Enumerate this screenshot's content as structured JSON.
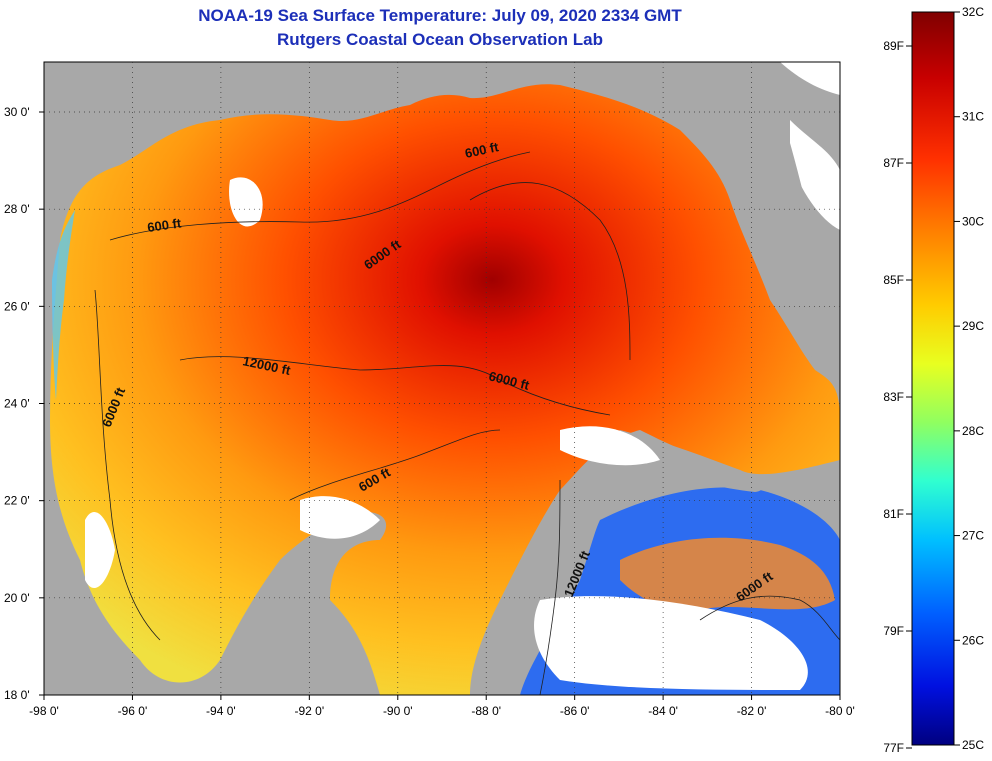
{
  "title": {
    "line1": "NOAA-19 Sea Surface Temperature:  July 09, 2020 2334 GMT",
    "line2": "Rutgers Coastal Ocean Observation Lab"
  },
  "map": {
    "lon_ticks": [
      "-98 0'",
      "-96 0'",
      "-94 0'",
      "-92 0'",
      "-90 0'",
      "-88 0'",
      "-86 0'",
      "-84 0'",
      "-82 0'",
      "-80 0'"
    ],
    "lat_ticks": [
      "30 0'",
      "28 0'",
      "26 0'",
      "24 0'",
      "22 0'",
      "20 0'",
      "18 0'"
    ],
    "contour_labels": [
      "600 ft",
      "600 ft",
      "6000 ft",
      "12000 ft",
      "6000 ft",
      "6000 ft",
      "600 ft",
      "12000 ft",
      "6000 ft"
    ],
    "land_color": "#a8a8a8",
    "cloud_color": "#ffffff"
  },
  "colorbar": {
    "celsius": [
      "32C",
      "31C",
      "30C",
      "29C",
      "28C",
      "27C",
      "26C",
      "25C"
    ],
    "fahrenheit": [
      "89F",
      "87F",
      "85F",
      "83F",
      "81F",
      "79F",
      "77F"
    ],
    "colors": [
      "#800000",
      "#c80000",
      "#ff3000",
      "#ff8000",
      "#ffcc00",
      "#e8ff20",
      "#90ff60",
      "#30ffd0",
      "#00c0ff",
      "#0060ff",
      "#0010e0",
      "#000080"
    ]
  }
}
